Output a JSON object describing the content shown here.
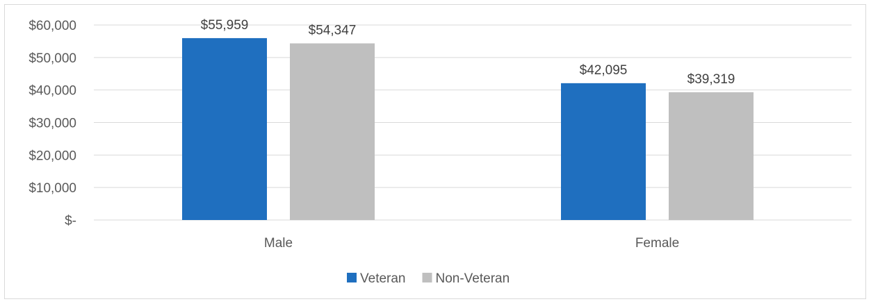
{
  "chart_data": {
    "type": "bar",
    "categories": [
      "Male",
      "Female"
    ],
    "series": [
      {
        "name": "Veteran",
        "values": [
          55959,
          42095
        ],
        "labels": [
          "$55,959",
          "$42,095"
        ],
        "color": "#1f6fbf"
      },
      {
        "name": "Non-Veteran",
        "values": [
          54347,
          39319
        ],
        "labels": [
          "$54,347",
          "$39,319"
        ],
        "color": "#bfbfbf"
      }
    ],
    "ylim": [
      0,
      60000
    ],
    "y_ticks": [
      0,
      10000,
      20000,
      30000,
      40000,
      50000,
      60000
    ],
    "y_tick_labels": [
      "$-",
      "$10,000",
      "$20,000",
      "$30,000",
      "$40,000",
      "$50,000",
      "$60,000"
    ],
    "grid": true,
    "gridline_color": "#d9d9d9",
    "legend_position": "bottom",
    "title": "",
    "xlabel": "",
    "ylabel": ""
  }
}
